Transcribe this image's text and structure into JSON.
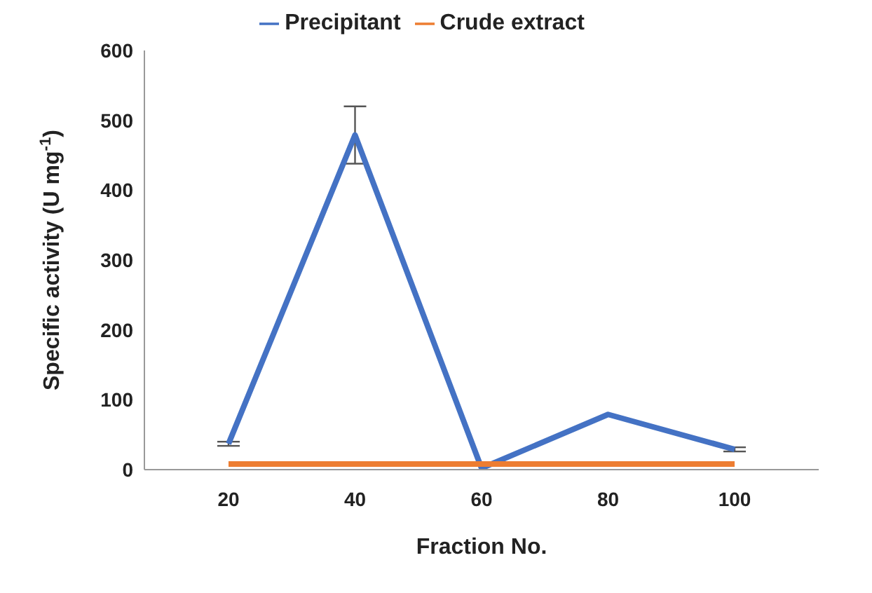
{
  "chart_data": {
    "type": "line",
    "xlabel": "Fraction No.",
    "ylabel": "Specific activity (U mg$^{-1}$)",
    "categories": [
      "20",
      "40",
      "60",
      "80",
      "100"
    ],
    "series": [
      {
        "name": "Precipitant",
        "color": "#4472c4",
        "values": [
          37,
          479,
          2,
          79,
          29
        ],
        "errors": [
          3,
          41,
          null,
          null,
          3
        ]
      },
      {
        "name": "Crude extract",
        "color": "#ed7d31",
        "values": [
          8,
          8,
          8,
          8,
          8
        ]
      }
    ],
    "ylim": [
      0,
      600
    ],
    "yticks": [
      0,
      100,
      200,
      300,
      400,
      500,
      600
    ],
    "grid": false,
    "legend": "top",
    "marker": "none",
    "line_style": "solid"
  }
}
